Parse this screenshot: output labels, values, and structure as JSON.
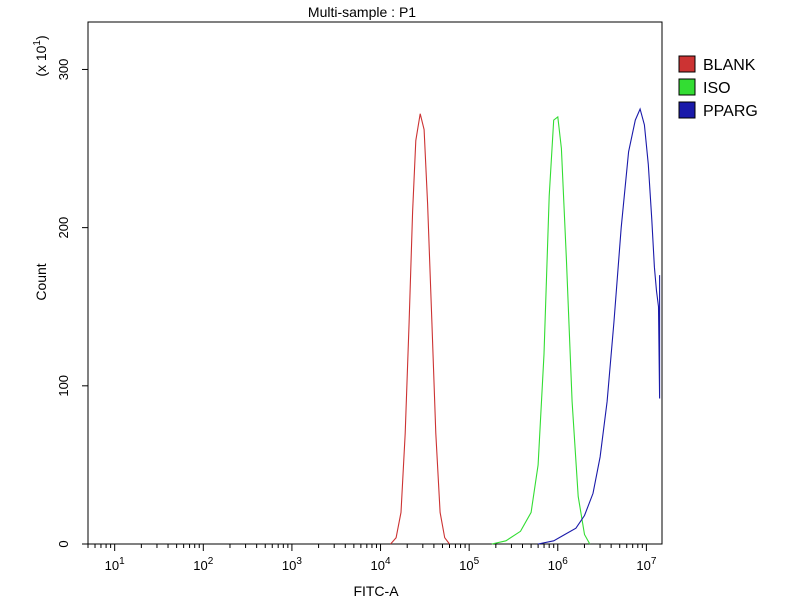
{
  "chart_data": {
    "type": "line",
    "title": "Multi-sample : P1",
    "xlabel": "FITC-A",
    "ylabel": "Count",
    "y_multiplier": "(x 10",
    "y_multiplier_exp": "1",
    "y_multiplier_close": ")",
    "x_scale": "log",
    "xlim": [
      5,
      15000000
    ],
    "ylim": [
      0,
      330
    ],
    "x_ticks": [
      {
        "value": 10,
        "base": "10",
        "exp": "1"
      },
      {
        "value": 100,
        "base": "10",
        "exp": "2"
      },
      {
        "value": 1000,
        "base": "10",
        "exp": "3"
      },
      {
        "value": 10000,
        "base": "10",
        "exp": "4"
      },
      {
        "value": 100000,
        "base": "10",
        "exp": "5"
      },
      {
        "value": 1000000,
        "base": "10",
        "exp": "6"
      },
      {
        "value": 10000000,
        "base": "10",
        "exp": "7"
      }
    ],
    "y_ticks": [
      {
        "value": 0,
        "label": "0"
      },
      {
        "value": 100,
        "label": "100"
      },
      {
        "value": 200,
        "label": "200"
      },
      {
        "value": 300,
        "label": "300"
      }
    ],
    "legend_position": "right",
    "grid": false,
    "series": [
      {
        "name": "BLANK",
        "color": "#cc3333",
        "points": [
          [
            13000,
            0
          ],
          [
            15000,
            4
          ],
          [
            17000,
            20
          ],
          [
            19000,
            70
          ],
          [
            21000,
            140
          ],
          [
            23000,
            210
          ],
          [
            25000,
            255
          ],
          [
            28000,
            272
          ],
          [
            31000,
            262
          ],
          [
            34000,
            215
          ],
          [
            38000,
            140
          ],
          [
            42000,
            70
          ],
          [
            47000,
            20
          ],
          [
            53000,
            4
          ],
          [
            60000,
            0
          ]
        ]
      },
      {
        "name": "ISO",
        "color": "#33dd33",
        "points": [
          [
            180000,
            0
          ],
          [
            260000,
            2
          ],
          [
            380000,
            8
          ],
          [
            500000,
            20
          ],
          [
            600000,
            50
          ],
          [
            700000,
            120
          ],
          [
            800000,
            220
          ],
          [
            900000,
            268
          ],
          [
            1000000,
            270
          ],
          [
            1100000,
            250
          ],
          [
            1250000,
            180
          ],
          [
            1450000,
            90
          ],
          [
            1700000,
            30
          ],
          [
            2000000,
            6
          ],
          [
            2300000,
            0
          ]
        ]
      },
      {
        "name": "PPARG",
        "color": "#1a1aaa",
        "points": [
          [
            600000,
            0
          ],
          [
            900000,
            2
          ],
          [
            1200000,
            6
          ],
          [
            1600000,
            10
          ],
          [
            2000000,
            18
          ],
          [
            2500000,
            32
          ],
          [
            3000000,
            55
          ],
          [
            3600000,
            90
          ],
          [
            4300000,
            140
          ],
          [
            5200000,
            200
          ],
          [
            6300000,
            248
          ],
          [
            7500000,
            268
          ],
          [
            8500000,
            275
          ],
          [
            9500000,
            265
          ],
          [
            10500000,
            240
          ],
          [
            11500000,
            205
          ],
          [
            12300000,
            175
          ],
          [
            13000000,
            160
          ],
          [
            13700000,
            150
          ],
          [
            14100000,
            92
          ],
          [
            14100000,
            170
          ]
        ]
      }
    ]
  }
}
